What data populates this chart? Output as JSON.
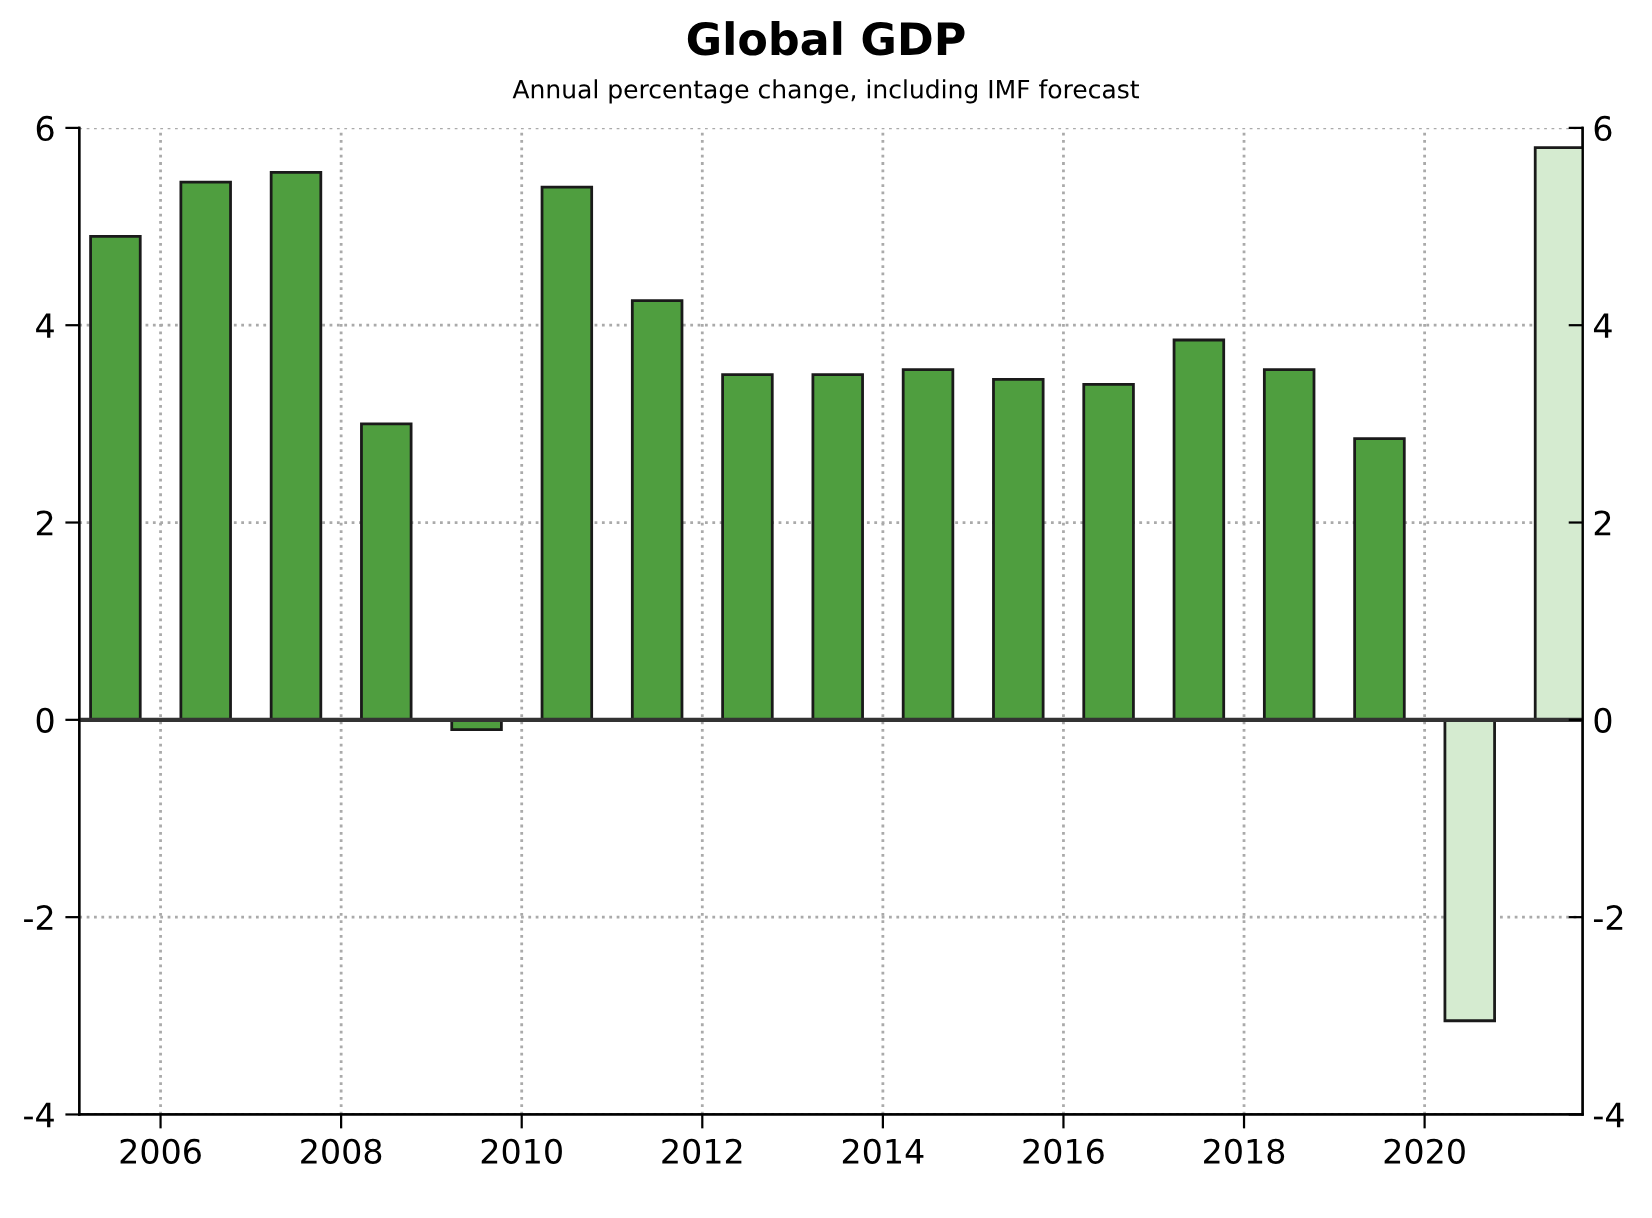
{
  "chart_data": {
    "type": "bar",
    "title": "Global GDP",
    "subtitle": "Annual percentage change, including IMF forecast",
    "series": [
      {
        "color": "#4f9e3f",
        "x": [
          2005.5,
          2006.5,
          2007.5,
          2008.5,
          2009.5,
          2010.5,
          2011.5,
          2012.5,
          2013.5,
          2014.5,
          2015.5,
          2016.5,
          2017.5,
          2018.5,
          2019.5
        ],
        "values": [
          4.9,
          5.45,
          5.55,
          3.0,
          -0.1,
          5.4,
          4.25,
          3.5,
          3.5,
          3.55,
          3.45,
          3.4,
          3.85,
          3.55,
          2.85
        ]
      },
      {
        "color": "#d5ebd0",
        "x": [
          2020.5,
          2021.5
        ],
        "values": [
          -3.05,
          5.8
        ]
      }
    ],
    "xlim": [
      2005.1,
      2021.75
    ],
    "xticks": [
      2006,
      2008,
      2010,
      2012,
      2014,
      2016,
      2018,
      2020
    ],
    "ylim": [
      -4,
      6
    ],
    "yticks": [
      -4,
      -2,
      0,
      2,
      4,
      6
    ],
    "y2lim": [
      -4,
      6
    ],
    "y2ticks": [
      -4,
      -2,
      0,
      2,
      4,
      6
    ],
    "ref_lines": [
      {
        "axis": "y",
        "value": 0,
        "color": "#333333"
      }
    ],
    "grid": true
  }
}
